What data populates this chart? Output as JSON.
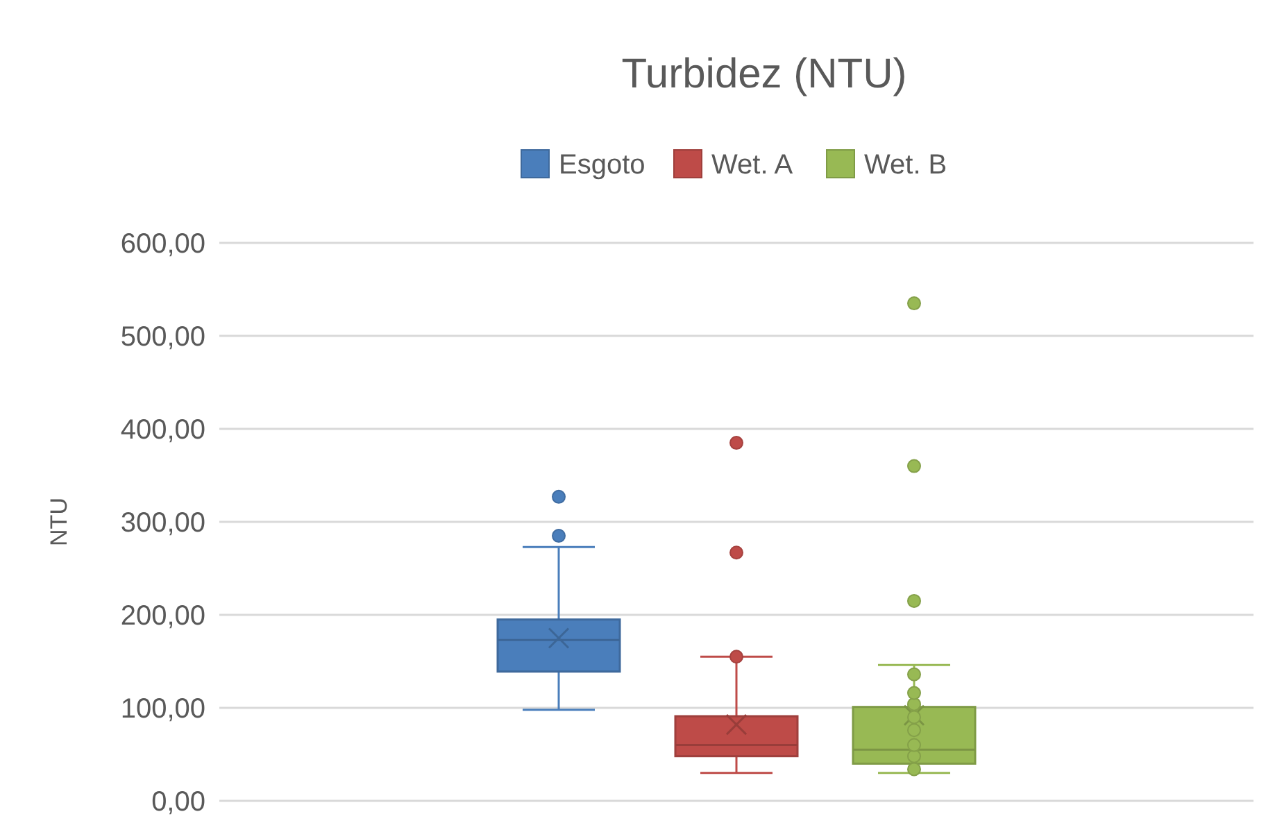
{
  "chart_data": {
    "type": "box",
    "title": "Turbidez (NTU)",
    "ylabel": "NTU",
    "categories": [
      null
    ],
    "ylim": [
      0,
      600
    ],
    "yticks": [
      {
        "value": 0,
        "label": "0,00"
      },
      {
        "value": 100,
        "label": "100,00"
      },
      {
        "value": 200,
        "label": "200,00"
      },
      {
        "value": 300,
        "label": "300,00"
      },
      {
        "value": 400,
        "label": "400,00"
      },
      {
        "value": 500,
        "label": "500,00"
      },
      {
        "value": 600,
        "label": "600,00"
      }
    ],
    "grid": "y",
    "legend": "top",
    "series": [
      {
        "name": "Esgoto",
        "color": "#4a7ebb",
        "boxes": [
          {
            "low": 98,
            "q1": 139,
            "median": 173,
            "q3": 195,
            "high": 273,
            "mean": 175,
            "outliers": [
              285,
              327
            ]
          }
        ]
      },
      {
        "name": "Wet. A",
        "color": "#be4b48",
        "boxes": [
          {
            "low": 30,
            "q1": 48,
            "median": 60,
            "q3": 91,
            "high": 155,
            "mean": 82,
            "outliers": [
              155,
              267,
              385
            ]
          }
        ]
      },
      {
        "name": "Wet. B",
        "color": "#98b954",
        "boxes": [
          {
            "low": 30,
            "q1": 40,
            "median": 55,
            "q3": 101,
            "high": 146,
            "mean": 92,
            "outliers": [
              34,
              48,
              60,
              76,
              90,
              104,
              116,
              136,
              215,
              360,
              535
            ]
          }
        ]
      }
    ]
  }
}
